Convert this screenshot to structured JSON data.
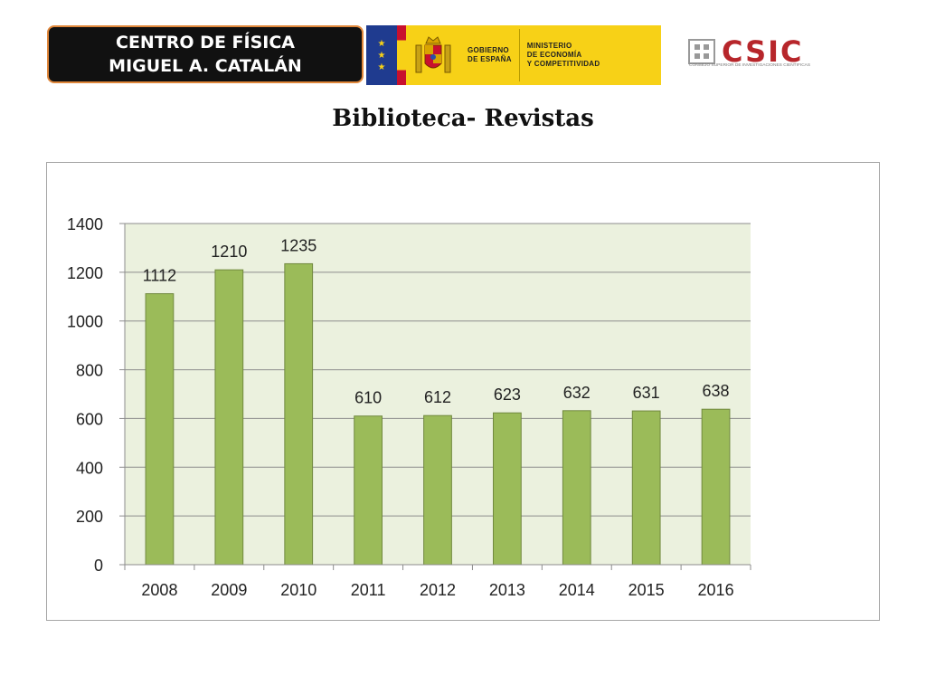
{
  "header": {
    "institution_line1": "CENTRO DE FÍSICA",
    "institution_line2": "MIGUEL A. CATALÁN",
    "gov_line1": "GOBIERNO",
    "gov_line2": "DE ESPAÑA",
    "ministry_line1": "MINISTERIO",
    "ministry_line2": "DE ECONOMÍA",
    "ministry_line3": "Y COMPETITIVIDAD",
    "csic_name": "CSIC",
    "csic_subtitle": "CONSEJO SUPERIOR DE INVESTIGACIONES CIENTÍFICAS"
  },
  "title": "Biblioteca- Revistas",
  "colors": {
    "bar_fill": "#9bbb59",
    "bar_stroke": "#71893f",
    "plot_bg": "#ebf1de",
    "badge_bg": "#111111",
    "badge_border": "#e0873a",
    "csic_red": "#b7262b",
    "gov_yellow": "#f7d117"
  },
  "chart_data": {
    "type": "bar",
    "categories": [
      "2008",
      "2009",
      "2010",
      "2011",
      "2012",
      "2013",
      "2014",
      "2015",
      "2016"
    ],
    "values": [
      1112,
      1210,
      1235,
      610,
      612,
      623,
      632,
      631,
      638
    ],
    "yticks": [
      "0",
      "200",
      "400",
      "600",
      "800",
      "1000",
      "1200",
      "1400"
    ],
    "ylim": [
      0,
      1400
    ],
    "title": "",
    "xlabel": "",
    "ylabel": "",
    "grid": true,
    "legend": "none",
    "data_labels": true
  }
}
